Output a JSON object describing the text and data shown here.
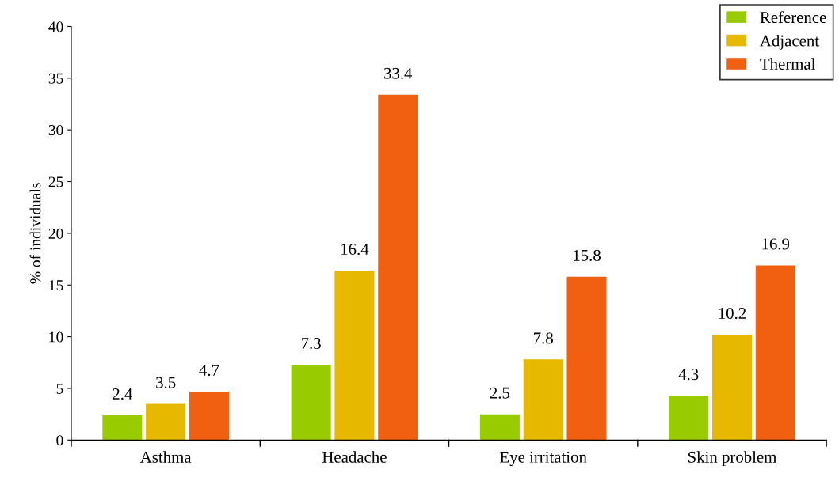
{
  "chart_data": {
    "type": "bar",
    "ylabel": "% of individuals",
    "categories": [
      "Asthma",
      "Headache",
      "Eye irritation",
      "Skin problem"
    ],
    "series": [
      {
        "name": "Reference",
        "color": "#99cc00",
        "values": [
          2.4,
          7.3,
          2.5,
          4.3
        ]
      },
      {
        "name": "Adjacent",
        "color": "#e6b800",
        "values": [
          3.5,
          16.4,
          7.8,
          10.2
        ]
      },
      {
        "name": "Thermal",
        "color": "#f06010",
        "values": [
          4.7,
          33.4,
          15.8,
          16.9
        ]
      }
    ],
    "ylim": [
      0,
      40
    ],
    "yticks": [
      0,
      5,
      10,
      15,
      20,
      25,
      30,
      35,
      40
    ],
    "data_labels": true,
    "legend": "top right",
    "grid": false
  }
}
